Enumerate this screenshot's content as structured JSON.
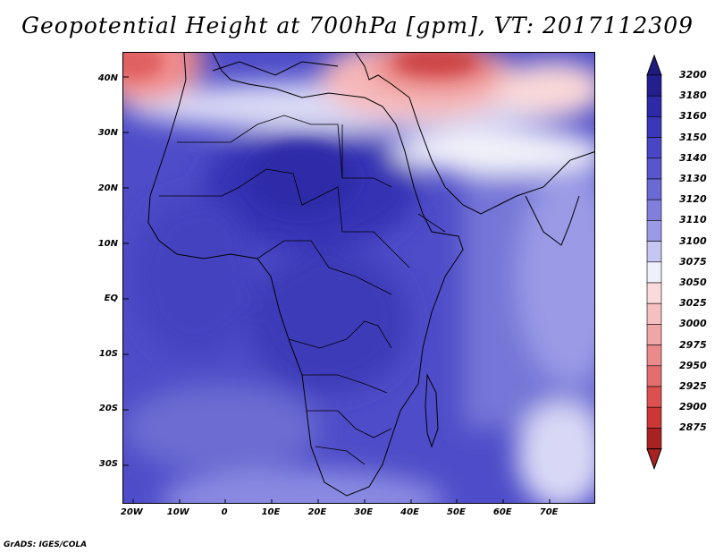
{
  "title": "Geopotential Height at 700hPa [gpm], VT: 2017112309",
  "credit": "GrADS: IGES/COLA",
  "map": {
    "lat_ticks": [
      {
        "value": 40,
        "label": "40N"
      },
      {
        "value": 30,
        "label": "30N"
      },
      {
        "value": 20,
        "label": "20N"
      },
      {
        "value": 10,
        "label": "10N"
      },
      {
        "value": 0,
        "label": "EQ"
      },
      {
        "value": -10,
        "label": "10S"
      },
      {
        "value": -20,
        "label": "20S"
      },
      {
        "value": -30,
        "label": "30S"
      }
    ],
    "lon_ticks": [
      {
        "value": -20,
        "label": "20W"
      },
      {
        "value": -10,
        "label": "10W"
      },
      {
        "value": 0,
        "label": "0"
      },
      {
        "value": 10,
        "label": "10E"
      },
      {
        "value": 20,
        "label": "20E"
      },
      {
        "value": 30,
        "label": "30E"
      },
      {
        "value": 40,
        "label": "40E"
      },
      {
        "value": 50,
        "label": "50E"
      },
      {
        "value": 60,
        "label": "60E"
      },
      {
        "value": 70,
        "label": "70E"
      }
    ],
    "lon_range": [
      -22,
      80
    ],
    "lat_range": [
      -37,
      45
    ]
  },
  "colorbar": {
    "levels": [
      "3200",
      "3180",
      "3160",
      "3150",
      "3140",
      "3130",
      "3120",
      "3110",
      "3100",
      "3075",
      "3050",
      "3025",
      "3000",
      "2975",
      "2950",
      "2925",
      "2900",
      "2875"
    ],
    "colors": [
      "#241f8e",
      "#2c2aa6",
      "#3a38b8",
      "#4846c4",
      "#5856cc",
      "#6a6ad4",
      "#8080dc",
      "#9a9ae6",
      "#c6c6f2",
      "#f0f0fa",
      "#fadada",
      "#f6c0c0",
      "#f0a6a6",
      "#ea8a8a",
      "#e46e6e",
      "#dc5050",
      "#cc3636",
      "#a82222"
    ],
    "top_color": "#1e1a80",
    "bottom_color": "#a82222"
  }
}
